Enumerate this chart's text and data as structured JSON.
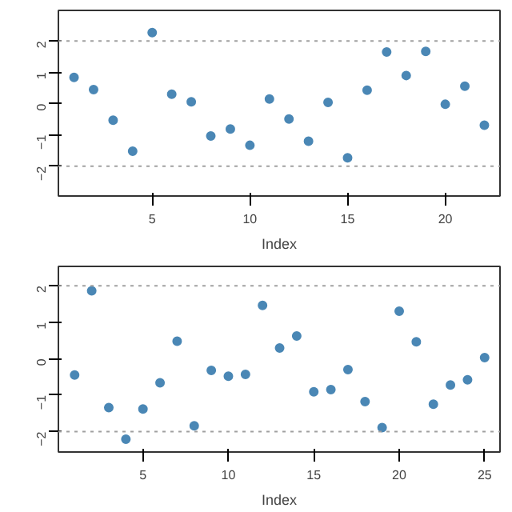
{
  "chart_data": [
    {
      "type": "scatter",
      "xlabel": "Index",
      "x": [
        1,
        2,
        3,
        4,
        5,
        6,
        7,
        8,
        9,
        10,
        11,
        12,
        13,
        14,
        15,
        16,
        17,
        18,
        19,
        20,
        21,
        22
      ],
      "series": [
        {
          "color": "#4a87b5",
          "values": [
            0.84,
            0.45,
            -0.53,
            -1.52,
            2.27,
            0.3,
            0.06,
            -1.03,
            -0.81,
            -1.33,
            0.15,
            -0.49,
            -1.2,
            0.04,
            -1.73,
            0.43,
            1.65,
            0.9,
            1.67,
            -0.02,
            0.56,
            -0.69
          ]
        }
      ],
      "xlim": [
        0.2,
        22.8
      ],
      "xticks": [
        5,
        10,
        15,
        20
      ],
      "ylim": [
        -2.95,
        2.98
      ],
      "yticks": [
        -2,
        -1,
        0,
        1,
        2
      ],
      "ref_lines": [
        {
          "axis": "y",
          "value": 2,
          "color": "#a0a0a0",
          "line_style": "dotted"
        },
        {
          "axis": "y",
          "value": -2,
          "color": "#a0a0a0",
          "line_style": "dotted"
        }
      ],
      "marker": "circle"
    },
    {
      "type": "scatter",
      "xlabel": "Index",
      "x": [
        1,
        2,
        3,
        4,
        5,
        6,
        7,
        8,
        9,
        10,
        11,
        12,
        13,
        14,
        15,
        16,
        17,
        18,
        19,
        20,
        21,
        22,
        23,
        24,
        25
      ],
      "series": [
        {
          "color": "#4a87b5",
          "values": [
            -0.45,
            1.86,
            -1.34,
            -2.21,
            -1.38,
            -0.66,
            0.48,
            -1.84,
            -0.32,
            -0.48,
            -0.43,
            1.46,
            0.29,
            0.62,
            -0.91,
            -0.85,
            -0.3,
            -1.18,
            -1.89,
            1.3,
            0.46,
            -1.25,
            -0.72,
            -0.58,
            0.03
          ]
        }
      ],
      "xlim": [
        0.05,
        25.9
      ],
      "xticks": [
        5,
        10,
        15,
        20,
        25
      ],
      "ylim": [
        -2.56,
        2.53
      ],
      "yticks": [
        -2,
        -1,
        0,
        1,
        2
      ],
      "ref_lines": [
        {
          "axis": "y",
          "value": 2,
          "color": "#a0a0a0",
          "line_style": "dotted"
        },
        {
          "axis": "y",
          "value": -2,
          "color": "#a0a0a0",
          "line_style": "dotted"
        }
      ],
      "marker": "circle"
    }
  ]
}
